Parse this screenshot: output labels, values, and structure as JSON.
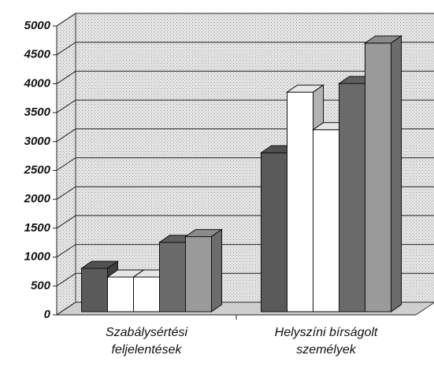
{
  "chart_data": {
    "type": "bar3d",
    "categories": [
      "Szabálysértési feljelentések",
      "Helyszíni bírságolt személyek"
    ],
    "series": [
      {
        "color": "#5a5a5a",
        "values": [
          750,
          2750
        ]
      },
      {
        "color": "#ffffff",
        "values": [
          600,
          3800
        ]
      },
      {
        "color": "#ffffff",
        "values": [
          600,
          3150
        ]
      },
      {
        "color": "#6a6a6a",
        "values": [
          1200,
          3950
        ]
      },
      {
        "color": "#9a9a9a",
        "values": [
          1300,
          4650
        ]
      }
    ],
    "ylim": [
      0,
      5000
    ],
    "yticks": [
      0,
      500,
      1000,
      1500,
      2000,
      2500,
      3000,
      3500,
      4000,
      4500,
      5000
    ],
    "grid": true
  }
}
